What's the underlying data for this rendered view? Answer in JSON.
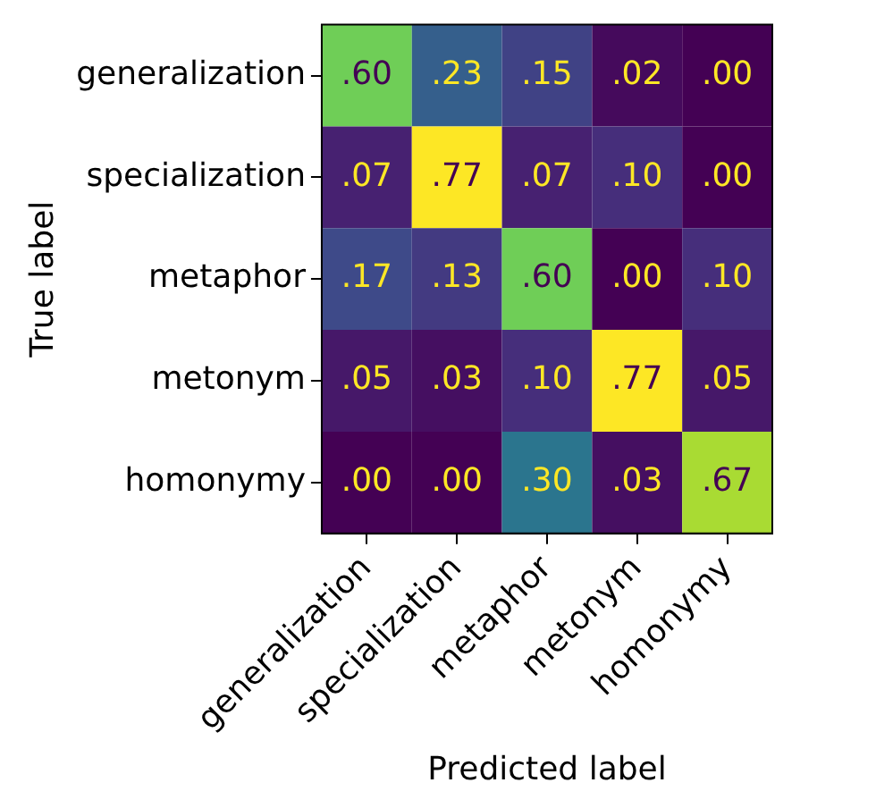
{
  "chart_data": {
    "type": "heatmap",
    "xlabel": "Predicted label",
    "ylabel": "True label",
    "categories": [
      "generalization",
      "specialization",
      "metaphor",
      "metonym",
      "homonymy"
    ],
    "y_categories": [
      "generalization",
      "specialization",
      "metaphor",
      "metonym",
      "homonymy"
    ],
    "cells": [
      [
        0.6,
        0.23,
        0.15,
        0.02,
        0.0
      ],
      [
        0.07,
        0.77,
        0.07,
        0.1,
        0.0
      ],
      [
        0.17,
        0.13,
        0.6,
        0.0,
        0.1
      ],
      [
        0.05,
        0.03,
        0.1,
        0.77,
        0.05
      ],
      [
        0.0,
        0.0,
        0.3,
        0.03,
        0.67
      ]
    ],
    "cell_labels": [
      [
        ".60",
        ".23",
        ".15",
        ".02",
        ".00"
      ],
      [
        ".07",
        ".77",
        ".07",
        ".10",
        ".00"
      ],
      [
        ".17",
        ".13",
        ".60",
        ".00",
        ".10"
      ],
      [
        ".05",
        ".03",
        ".10",
        ".77",
        ".05"
      ],
      [
        ".00",
        ".00",
        ".30",
        ".03",
        ".67"
      ]
    ]
  }
}
